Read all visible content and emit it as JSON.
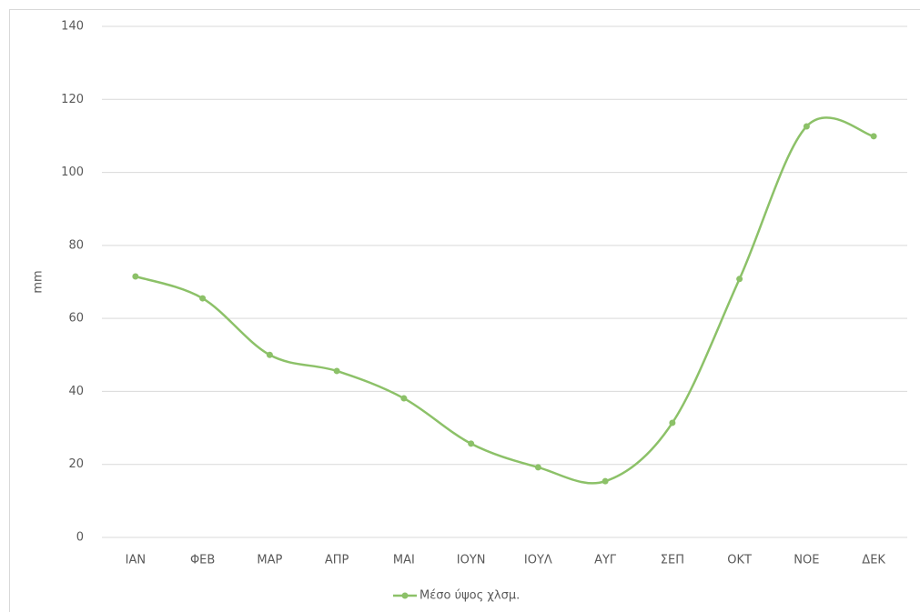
{
  "chart_data": {
    "type": "line",
    "y_label": "mm",
    "categories": [
      "ΙΑΝ",
      "ΦΕΒ",
      "ΜΑΡ",
      "ΑΠΡ",
      "ΜΑΙ",
      "ΙΟΥΝ",
      "ΙΟΥΛ",
      "ΑΥΓ",
      "ΣΕΠ",
      "ΟΚΤ",
      "ΝΟΕ",
      "ΔΕΚ"
    ],
    "series": [
      {
        "name": "Μέσο ύψος χλσμ.",
        "color": "#8cc168",
        "values": [
          71.5,
          65.5,
          50,
          45.6,
          38.1,
          25.7,
          19.2,
          15.4,
          31.4,
          70.8,
          112.6,
          109.9
        ]
      }
    ],
    "ylim": [
      0,
      140
    ],
    "yticks": [
      0,
      20,
      40,
      60,
      80,
      100,
      120,
      140
    ],
    "grid": true,
    "smooth": true,
    "legend": "bottom"
  }
}
